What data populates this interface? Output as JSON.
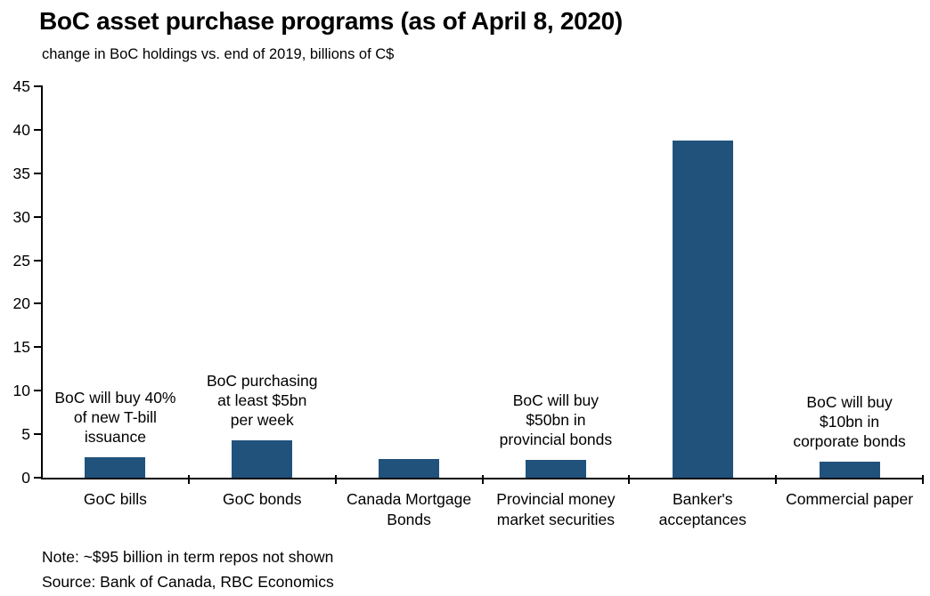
{
  "header": {
    "title": "BoC asset purchase programs (as of April 8, 2020)",
    "subtitle": "change in BoC holdings vs. end of 2019, billions of C$"
  },
  "footer": {
    "note": "Note: ~$95 billion in term repos not shown",
    "source": "Source: Bank of Canada, RBC Economics"
  },
  "chart_data": {
    "type": "bar",
    "title": "BoC asset purchase programs (as of April 8, 2020)",
    "subtitle": "change in BoC holdings vs. end of 2019, billions of C$",
    "categories": [
      "GoC bills",
      "GoC bonds",
      "Canada Mortgage Bonds",
      "Provincial money market securities",
      "Banker's acceptances",
      "Commercial paper"
    ],
    "values": [
      2.4,
      4.3,
      2.1,
      2.0,
      38.8,
      1.8
    ],
    "xlabel": "",
    "ylabel": "billions of C$ (change vs. end of 2019)",
    "ylim": [
      0,
      45
    ],
    "yticks": [
      0,
      5,
      10,
      15,
      20,
      25,
      30,
      35,
      40,
      45
    ],
    "grid": false,
    "legend": "none",
    "bar_color": "#21527C",
    "axis_color": "#000000",
    "text_color": "#000000",
    "annotations": [
      {
        "category_index": 0,
        "text": "BoC will buy 40% of new T-bill issuance",
        "lines": [
          "BoC will buy 40%",
          "of new T-bill",
          "issuance"
        ]
      },
      {
        "category_index": 1,
        "text": "BoC purchasing at least $5bn per week",
        "lines": [
          "BoC purchasing",
          "at least $5bn",
          "per week"
        ]
      },
      {
        "category_index": 3,
        "text": "BoC will buy $50bn in provincial bonds",
        "lines": [
          "BoC will buy",
          "$50bn in",
          "provincial bonds"
        ]
      },
      {
        "category_index": 5,
        "text": "BoC will buy $10bn in corporate bonds",
        "lines": [
          "BoC will buy",
          "$10bn in",
          "corporate bonds"
        ]
      }
    ],
    "note": "Note: ~$95 billion in term repos not shown",
    "source": "Source: Bank of Canada, RBC Economics"
  }
}
